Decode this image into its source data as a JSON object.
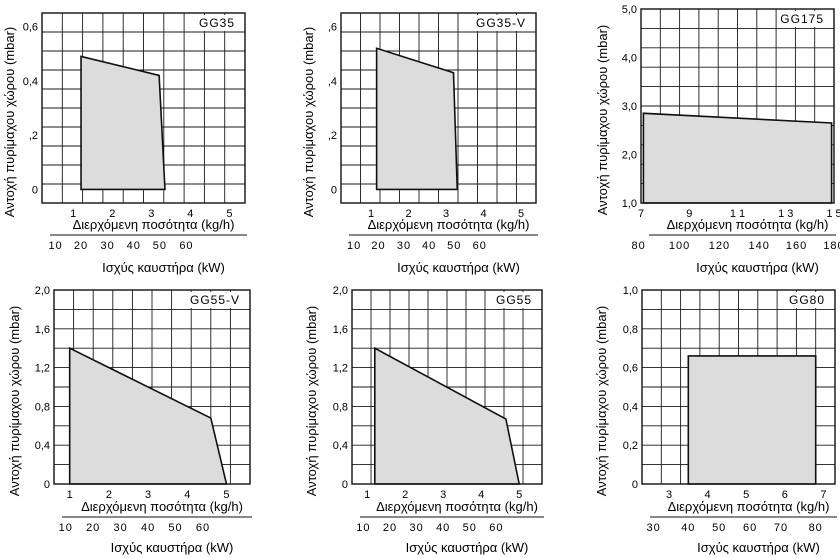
{
  "chart_data": [
    {
      "type": "area",
      "title": "GG35",
      "ylabel": "Αντοχή πυρίμαχου χώρου (mbar)",
      "xlabel": "Διερχόμενη ποσότητα (kg/h)",
      "x2label": "Ισχύς καυστήρα (kW)",
      "xlim": [
        0.2,
        5.4
      ],
      "ylim": [
        -0.05,
        0.65
      ],
      "grid": true,
      "x_ticks": [
        {
          "v": 1,
          "t": "1"
        },
        {
          "v": 2,
          "t": "2"
        },
        {
          "v": 3,
          "t": "3"
        },
        {
          "v": 4,
          "t": "4"
        },
        {
          "v": 5,
          "t": "5"
        }
      ],
      "y_ticks": [
        {
          "v": 0,
          "t": "0"
        },
        {
          "v": 0.2,
          "t": ",2"
        },
        {
          "v": 0.4,
          "t": "0,4"
        },
        {
          "v": 0.6,
          "t": "0,6"
        }
      ],
      "x2_ticks": [
        {
          "v": 0.55,
          "t": "10"
        },
        {
          "v": 1.2,
          "t": "20"
        },
        {
          "v": 1.88,
          "t": "30"
        },
        {
          "v": 2.55,
          "t": "40"
        },
        {
          "v": 3.22,
          "t": "50"
        },
        {
          "v": 3.9,
          "t": "60"
        }
      ],
      "polygon": [
        [
          1.2,
          0.0
        ],
        [
          1.2,
          0.49
        ],
        [
          3.2,
          0.42
        ],
        [
          3.35,
          0.0
        ]
      ]
    },
    {
      "type": "area",
      "title": "GG35-V",
      "ylabel": "Αντοχή πυρίμαχου χώρου (mbar)",
      "xlabel": "Διερχόμενη ποσότητα (kg/h)",
      "x2label": "Ισχύς καυστήρα (kW)",
      "xlim": [
        0.2,
        5.4
      ],
      "ylim": [
        -0.05,
        0.65
      ],
      "grid": true,
      "x_ticks": [
        {
          "v": 1,
          "t": "1"
        },
        {
          "v": 2,
          "t": "2"
        },
        {
          "v": 3,
          "t": "3"
        },
        {
          "v": 4,
          "t": "4"
        },
        {
          "v": 5,
          "t": "5"
        }
      ],
      "y_ticks": [
        {
          "v": 0,
          "t": "0"
        },
        {
          "v": 0.2,
          "t": ",2"
        },
        {
          "v": 0.4,
          "t": ",4"
        },
        {
          "v": 0.6,
          "t": ",6"
        }
      ],
      "x2_ticks": [
        {
          "v": 0.55,
          "t": "10"
        },
        {
          "v": 1.2,
          "t": "20"
        },
        {
          "v": 1.88,
          "t": "30"
        },
        {
          "v": 2.55,
          "t": "40"
        },
        {
          "v": 3.22,
          "t": "50"
        },
        {
          "v": 3.9,
          "t": "60"
        }
      ],
      "polygon": [
        [
          1.15,
          0.0
        ],
        [
          1.15,
          0.52
        ],
        [
          3.2,
          0.43
        ],
        [
          3.3,
          0.0
        ]
      ]
    },
    {
      "type": "area",
      "title": "GG175",
      "ylabel": "Αντοχή πυρίμαχου χώρου (mbar)",
      "xlabel": "Διερχόμενη ποσότητα (kg/h)",
      "x2label": "Ισχύς καυστήρα (kW)",
      "xlim": [
        7,
        15
      ],
      "ylim": [
        1,
        5
      ],
      "grid": true,
      "x_ticks": [
        {
          "v": 7,
          "t": "7"
        },
        {
          "v": 9,
          "t": "9"
        },
        {
          "v": 11,
          "t": "1 1"
        },
        {
          "v": 13,
          "t": "1 3"
        },
        {
          "v": 15,
          "t": "1 5"
        }
      ],
      "y_ticks": [
        {
          "v": 1,
          "t": "1,0"
        },
        {
          "v": 2,
          "t": "2,0"
        },
        {
          "v": 3,
          "t": "3,0"
        },
        {
          "v": 4,
          "t": "4,0"
        },
        {
          "v": 5,
          "t": "5,0"
        }
      ],
      "x2_ticks": [
        {
          "v": 6.9,
          "t": "80"
        },
        {
          "v": 8.6,
          "t": "100"
        },
        {
          "v": 10.25,
          "t": "120"
        },
        {
          "v": 11.9,
          "t": "140"
        },
        {
          "v": 13.45,
          "t": "160"
        },
        {
          "v": 15.0,
          "t": "180"
        }
      ],
      "polygon": [
        [
          7.1,
          1.0
        ],
        [
          7.1,
          2.85
        ],
        [
          14.9,
          2.65
        ],
        [
          14.9,
          1.0
        ]
      ]
    },
    {
      "type": "area",
      "title": "GG55-V",
      "ylabel": "Αντοχή πυρίμαχου χώρου (mbar)",
      "xlabel": "Διερχόμενη ποσότητα (kg/h)",
      "x2label": "Ισχύς καυστήρα (kW)",
      "xlim": [
        0.6,
        5.6
      ],
      "ylim": [
        0,
        2.0
      ],
      "grid": true,
      "x_ticks": [
        {
          "v": 1,
          "t": "1"
        },
        {
          "v": 2,
          "t": "2"
        },
        {
          "v": 3,
          "t": "3"
        },
        {
          "v": 4,
          "t": "4"
        },
        {
          "v": 5,
          "t": "5"
        }
      ],
      "y_ticks": [
        {
          "v": 0,
          "t": "0"
        },
        {
          "v": 0.4,
          "t": "0,4"
        },
        {
          "v": 0.8,
          "t": "0,8"
        },
        {
          "v": 1.2,
          "t": "1,2"
        },
        {
          "v": 1.6,
          "t": "1,6"
        },
        {
          "v": 2.0,
          "t": "2,0"
        }
      ],
      "x2_ticks": [
        {
          "v": 0.9,
          "t": "10"
        },
        {
          "v": 1.6,
          "t": "20"
        },
        {
          "v": 2.3,
          "t": "30"
        },
        {
          "v": 3.0,
          "t": "40"
        },
        {
          "v": 3.7,
          "t": "50"
        },
        {
          "v": 4.4,
          "t": "60"
        }
      ],
      "polygon": [
        [
          1.0,
          0.0
        ],
        [
          1.0,
          1.4
        ],
        [
          4.6,
          0.68
        ],
        [
          5.0,
          0.0
        ]
      ]
    },
    {
      "type": "area",
      "title": "GG55",
      "ylabel": "Αντοχή πυρίμαχου χώρου (mbar)",
      "xlabel": "Διερχόμενη ποσότητα (kg/h)",
      "x2label": "Ισχύς καυστήρα (kW)",
      "xlim": [
        0.6,
        5.6
      ],
      "ylim": [
        0,
        2.0
      ],
      "grid": true,
      "x_ticks": [
        {
          "v": 1,
          "t": "1"
        },
        {
          "v": 2,
          "t": "2"
        },
        {
          "v": 3,
          "t": "3"
        },
        {
          "v": 4,
          "t": "4"
        },
        {
          "v": 5,
          "t": "5"
        }
      ],
      "y_ticks": [
        {
          "v": 0,
          "t": "0"
        },
        {
          "v": 0.4,
          "t": "0,4"
        },
        {
          "v": 0.8,
          "t": "0,8"
        },
        {
          "v": 1.2,
          "t": "1,2"
        },
        {
          "v": 1.6,
          "t": "1,6"
        },
        {
          "v": 2.0,
          "t": "2,0"
        }
      ],
      "x2_ticks": [
        {
          "v": 0.9,
          "t": "10"
        },
        {
          "v": 1.6,
          "t": "20"
        },
        {
          "v": 2.3,
          "t": "30"
        },
        {
          "v": 3.0,
          "t": "40"
        },
        {
          "v": 3.7,
          "t": "50"
        },
        {
          "v": 4.4,
          "t": "60"
        }
      ],
      "polygon": [
        [
          1.2,
          0.0
        ],
        [
          1.2,
          1.4
        ],
        [
          4.65,
          0.67
        ],
        [
          5.0,
          0.0
        ]
      ]
    },
    {
      "type": "area",
      "title": "GG80",
      "ylabel": "Αντοχή πυρίμαχου χώρου (mbar)",
      "xlabel": "Διερχόμενη ποσότητα (kg/h)",
      "x2label": "Ισχύς καυστήρα (kW)",
      "xlim": [
        2.3,
        7.3
      ],
      "ylim": [
        0,
        1.0
      ],
      "grid": true,
      "x_ticks": [
        {
          "v": 3,
          "t": "3"
        },
        {
          "v": 4,
          "t": "4"
        },
        {
          "v": 5,
          "t": "5"
        },
        {
          "v": 6,
          "t": "6"
        },
        {
          "v": 7,
          "t": "7"
        }
      ],
      "y_ticks": [
        {
          "v": 0,
          "t": "0"
        },
        {
          "v": 0.2,
          "t": "0,2"
        },
        {
          "v": 0.4,
          "t": "0,4"
        },
        {
          "v": 0.6,
          "t": "0,6"
        },
        {
          "v": 0.8,
          "t": "0,8"
        },
        {
          "v": 1.0,
          "t": "1,0"
        }
      ],
      "x2_ticks": [
        {
          "v": 2.6,
          "t": "30"
        },
        {
          "v": 3.5,
          "t": "40"
        },
        {
          "v": 4.3,
          "t": "50"
        },
        {
          "v": 5.1,
          "t": "60"
        },
        {
          "v": 5.9,
          "t": "70"
        },
        {
          "v": 6.8,
          "t": "80"
        }
      ],
      "polygon": [
        [
          3.5,
          0.0
        ],
        [
          3.5,
          0.66
        ],
        [
          6.8,
          0.66
        ],
        [
          6.8,
          0.0
        ]
      ]
    }
  ]
}
